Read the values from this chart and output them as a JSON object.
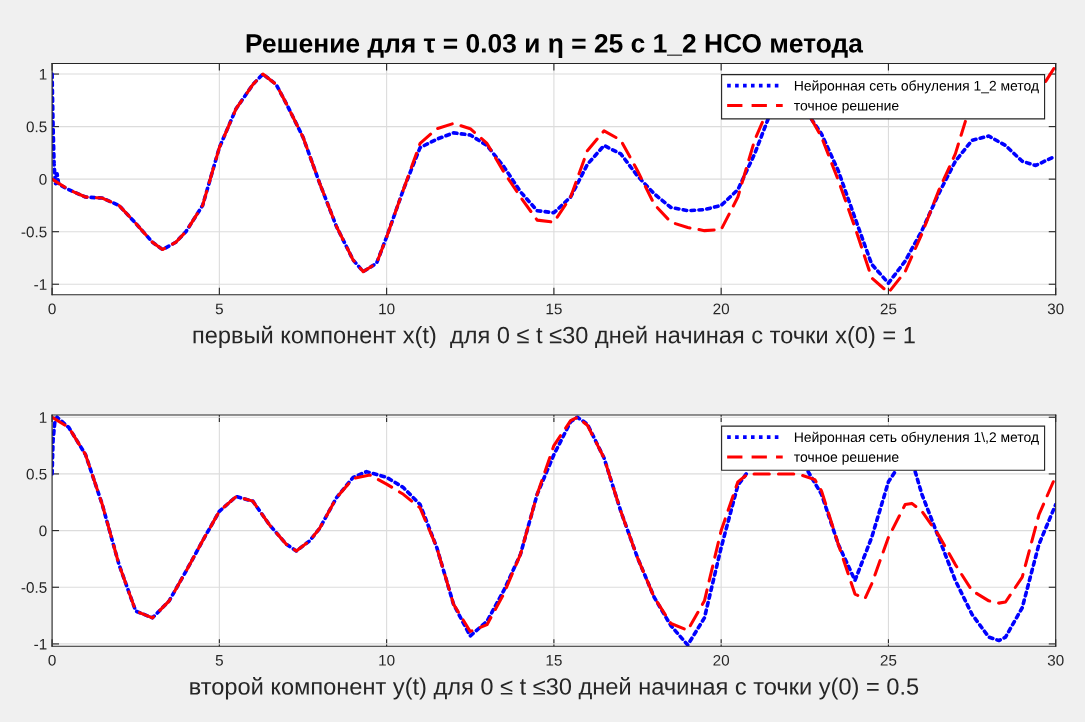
{
  "chart_data": [
    {
      "type": "line",
      "title": "Решение для τ = 0.03 и η = 25 с 1_2 НСО метода",
      "xlabel": "первый компонент x(t)  для 0 ≤ t ≤30 дней начиная с точки x(0) = 1",
      "xlim": [
        0,
        30
      ],
      "xticks": [
        0,
        5,
        10,
        15,
        20,
        25,
        30
      ],
      "ylim": [
        -1.1,
        1.1
      ],
      "yticks": [
        -1,
        -0.5,
        0,
        0.5,
        1
      ],
      "grid": true,
      "legend": "top right",
      "marker": "none",
      "series": [
        {
          "name": "Нейронная сеть обнуления 1_2 метод",
          "color": "#0000ff",
          "line_style": "dotted",
          "x": [
            0,
            0.03,
            0.06,
            0.1,
            0.15,
            0.2,
            0.5,
            1,
            1.5,
            2,
            2.5,
            3,
            3.3,
            3.7,
            4,
            4.5,
            5,
            5.5,
            6,
            6.3,
            6.7,
            7,
            7.5,
            8,
            8.5,
            9,
            9.3,
            9.7,
            10,
            10.5,
            11,
            11.5,
            12,
            12.5,
            13,
            13.5,
            14,
            14.5,
            15,
            15.5,
            16,
            16.5,
            17,
            17.5,
            18,
            18.5,
            19,
            19.5,
            20,
            20.5,
            21,
            21.4,
            22,
            22.7,
            23,
            23.5,
            24,
            24.5,
            25,
            25.5,
            26,
            26.5,
            27,
            27.5,
            28,
            28.5,
            29,
            29.4,
            30
          ],
          "values": [
            1,
            0.5,
            0.15,
            -0.05,
            0.05,
            -0.05,
            -0.1,
            -0.17,
            -0.18,
            -0.25,
            -0.42,
            -0.6,
            -0.67,
            -0.6,
            -0.5,
            -0.25,
            0.3,
            0.67,
            0.9,
            1.0,
            0.9,
            0.72,
            0.4,
            -0.04,
            -0.45,
            -0.77,
            -0.88,
            -0.8,
            -0.55,
            -0.1,
            0.3,
            0.38,
            0.44,
            0.42,
            0.32,
            0.12,
            -0.12,
            -0.3,
            -0.32,
            -0.17,
            0.14,
            0.32,
            0.24,
            0.03,
            -0.14,
            -0.27,
            -0.3,
            -0.29,
            -0.25,
            -0.1,
            0.24,
            0.57,
            null,
            0.57,
            0.43,
            0.08,
            -0.37,
            -0.81,
            -0.99,
            -0.78,
            -0.49,
            -0.14,
            0.17,
            0.37,
            0.41,
            0.32,
            0.17,
            0.13,
            0.22
          ]
        },
        {
          "name": "точное решение",
          "color": "#ff0000",
          "line_style": "dashed",
          "x": [
            0,
            0.5,
            1,
            1.5,
            2,
            2.5,
            3,
            3.3,
            3.7,
            4,
            4.5,
            5,
            5.5,
            6,
            6.3,
            6.7,
            7,
            7.5,
            8,
            8.5,
            9,
            9.3,
            9.7,
            10,
            10.5,
            11,
            11.5,
            12,
            12.5,
            13,
            13.5,
            14,
            14.5,
            15,
            15.5,
            16,
            16.5,
            17,
            17.5,
            18,
            18.5,
            19,
            19.5,
            20,
            20.5,
            21,
            21.3,
            22,
            22.7,
            23,
            23.5,
            24,
            24.5,
            25,
            25.5,
            26,
            26.5,
            27,
            27.3,
            28,
            29.7,
            30
          ],
          "values": [
            0,
            -0.1,
            -0.17,
            -0.18,
            -0.25,
            -0.42,
            -0.6,
            -0.67,
            -0.6,
            -0.5,
            -0.25,
            0.3,
            0.67,
            0.9,
            1.0,
            0.9,
            0.72,
            0.4,
            -0.04,
            -0.45,
            -0.77,
            -0.88,
            -0.8,
            -0.55,
            -0.1,
            0.34,
            0.48,
            0.53,
            0.48,
            0.34,
            0.07,
            -0.17,
            -0.39,
            -0.41,
            -0.17,
            0.27,
            0.46,
            0.37,
            0.08,
            -0.24,
            -0.41,
            -0.46,
            -0.49,
            -0.48,
            -0.17,
            0.37,
            0.59,
            null,
            0.57,
            0.4,
            -0.01,
            -0.46,
            -0.94,
            -1.08,
            -0.88,
            -0.52,
            -0.11,
            0.24,
            0.55,
            null,
            0.93,
            1.08
          ]
        }
      ]
    },
    {
      "type": "line",
      "xlabel": "второй компонент y(t) для 0 ≤ t ≤30 дней начиная с точки y(0) = 0.5",
      "xlim": [
        0,
        30
      ],
      "xticks": [
        0,
        5,
        10,
        15,
        20,
        25,
        30
      ],
      "ylim": [
        -1.02,
        1.02
      ],
      "yticks": [
        -1,
        -0.5,
        0,
        0.5,
        1
      ],
      "grid": true,
      "legend": "top right",
      "marker": "none",
      "series": [
        {
          "name": "Нейронная сеть обнуления 1\\,2 метод",
          "color": "#0000ff",
          "line_style": "dotted",
          "x": [
            0,
            0.03,
            0.08,
            0.15,
            0.5,
            1,
            1.5,
            2,
            2.5,
            3,
            3.5,
            4,
            4.5,
            5,
            5.5,
            6,
            6.5,
            7,
            7.3,
            7.7,
            8,
            8.5,
            9,
            9.4,
            10,
            10.5,
            11,
            11.5,
            12,
            12.5,
            13,
            13.5,
            14,
            14.5,
            15,
            15.5,
            15.7,
            16,
            16.5,
            17,
            17.5,
            18,
            18.5,
            19,
            19.5,
            20,
            20.5,
            20.8,
            21.5,
            22.6,
            23,
            23.5,
            24,
            24.5,
            25,
            25.2,
            25.5,
            25.8,
            26,
            26.5,
            27,
            27.5,
            28,
            28.3,
            28.5,
            29,
            29.5,
            30
          ],
          "values": [
            0.5,
            0.8,
            0.95,
            1.0,
            0.91,
            0.67,
            0.23,
            -0.3,
            -0.71,
            -0.77,
            -0.62,
            -0.36,
            -0.09,
            0.17,
            0.3,
            0.26,
            0.05,
            -0.12,
            -0.18,
            -0.09,
            0.02,
            0.29,
            0.47,
            0.52,
            0.47,
            0.38,
            0.23,
            -0.15,
            -0.65,
            -0.93,
            -0.8,
            -0.53,
            -0.21,
            0.32,
            0.67,
            0.96,
            1.0,
            0.94,
            0.64,
            0.17,
            -0.24,
            -0.59,
            -0.84,
            -1.01,
            -0.77,
            -0.15,
            0.4,
            0.52,
            null,
            0.52,
            0.32,
            -0.12,
            -0.44,
            -0.06,
            0.43,
            0.52,
            null,
            0.52,
            0.32,
            -0.06,
            -0.44,
            -0.74,
            -0.94,
            -0.97,
            -0.94,
            -0.68,
            -0.12,
            0.23
          ]
        },
        {
          "name": "точное решение",
          "color": "#ff0000",
          "line_style": "dashed",
          "x": [
            0,
            0.5,
            1,
            1.5,
            2,
            2.5,
            3,
            3.5,
            4,
            4.5,
            5,
            5.5,
            6,
            6.5,
            7,
            7.3,
            7.7,
            8,
            8.5,
            9,
            9.5,
            10,
            10.5,
            11,
            11.5,
            12,
            12.5,
            13,
            13.5,
            14,
            14.5,
            15,
            15.5,
            15.7,
            16,
            16.5,
            17,
            17.5,
            18,
            18.5,
            19,
            19.5,
            20,
            20.5,
            20.8,
            21.5,
            22.3,
            22.8,
            23,
            23.5,
            24,
            24.3,
            24.5,
            25,
            25.5,
            25.7,
            26,
            26.5,
            27,
            27.5,
            28,
            28.3,
            28.5,
            29,
            29.5,
            30
          ],
          "values": [
            1,
            0.91,
            0.67,
            0.23,
            -0.3,
            -0.71,
            -0.77,
            -0.62,
            -0.36,
            -0.09,
            0.17,
            0.3,
            0.26,
            0.05,
            -0.12,
            -0.18,
            -0.09,
            0.02,
            0.29,
            0.46,
            0.49,
            0.41,
            0.32,
            0.2,
            -0.15,
            -0.65,
            -0.89,
            -0.83,
            -0.56,
            -0.21,
            0.32,
            0.75,
            0.97,
            1.0,
            0.93,
            0.64,
            0.17,
            -0.24,
            -0.59,
            -0.82,
            -0.88,
            -0.62,
            0,
            0.43,
            0.5,
            0.5,
            0.5,
            0.45,
            0.35,
            -0.12,
            -0.56,
            -0.6,
            -0.47,
            -0.06,
            0.23,
            0.24,
            0.17,
            -0.04,
            -0.3,
            -0.53,
            -0.62,
            -0.64,
            -0.63,
            -0.41,
            0.14,
            0.48
          ]
        }
      ]
    }
  ]
}
